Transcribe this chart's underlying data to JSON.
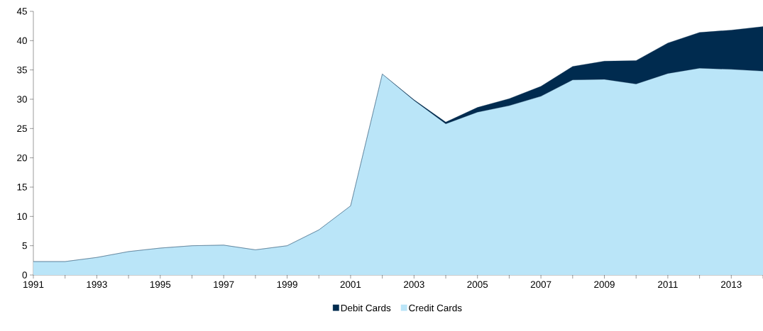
{
  "chart_data": {
    "type": "area",
    "stacked": true,
    "legend": "bottom",
    "grid": false,
    "x": [
      1991,
      1992,
      1993,
      1994,
      1995,
      1996,
      1997,
      1998,
      1999,
      2000,
      2001,
      2002,
      2003,
      2004,
      2005,
      2006,
      2007,
      2008,
      2009,
      2010,
      2011,
      2012,
      2013,
      2014
    ],
    "series": [
      {
        "name": "Credit Cards",
        "color": "#bae5f8",
        "values": [
          2.3,
          2.3,
          3.0,
          4.0,
          4.6,
          5.0,
          5.1,
          4.3,
          5.0,
          7.7,
          11.8,
          34.3,
          29.8,
          25.8,
          27.8,
          28.9,
          30.5,
          33.3,
          33.4,
          32.6,
          34.4,
          35.3,
          35.1,
          34.8
        ]
      },
      {
        "name": "Debit Cards",
        "color": "#002b4f",
        "values": [
          0,
          0,
          0,
          0,
          0,
          0,
          0,
          0,
          0,
          0,
          0,
          0,
          0.1,
          0.3,
          0.8,
          1.2,
          1.7,
          2.3,
          3.1,
          4.0,
          5.2,
          6.1,
          6.7,
          7.6
        ]
      }
    ],
    "xlim": [
      1991,
      2014
    ],
    "ylim": [
      0,
      45
    ],
    "xticks": [
      {
        "value": 1991,
        "label": "1991"
      },
      {
        "value": 1992,
        "label": null
      },
      {
        "value": 1993,
        "label": "1993"
      },
      {
        "value": 1994,
        "label": null
      },
      {
        "value": 1995,
        "label": "1995"
      },
      {
        "value": 1996,
        "label": null
      },
      {
        "value": 1997,
        "label": "1997"
      },
      {
        "value": 1998,
        "label": null
      },
      {
        "value": 1999,
        "label": "1999"
      },
      {
        "value": 2000,
        "label": null
      },
      {
        "value": 2001,
        "label": "2001"
      },
      {
        "value": 2002,
        "label": null
      },
      {
        "value": 2003,
        "label": "2003"
      },
      {
        "value": 2004,
        "label": null
      },
      {
        "value": 2005,
        "label": "2005"
      },
      {
        "value": 2006,
        "label": null
      },
      {
        "value": 2007,
        "label": "2007"
      },
      {
        "value": 2008,
        "label": null
      },
      {
        "value": 2009,
        "label": "2009"
      },
      {
        "value": 2010,
        "label": null
      },
      {
        "value": 2011,
        "label": "2011"
      },
      {
        "value": 2012,
        "label": null
      },
      {
        "value": 2013,
        "label": "2013"
      },
      {
        "value": 2014,
        "label": null
      }
    ],
    "yticks": [
      0,
      5,
      10,
      15,
      20,
      25,
      30,
      35,
      40,
      45
    ]
  }
}
